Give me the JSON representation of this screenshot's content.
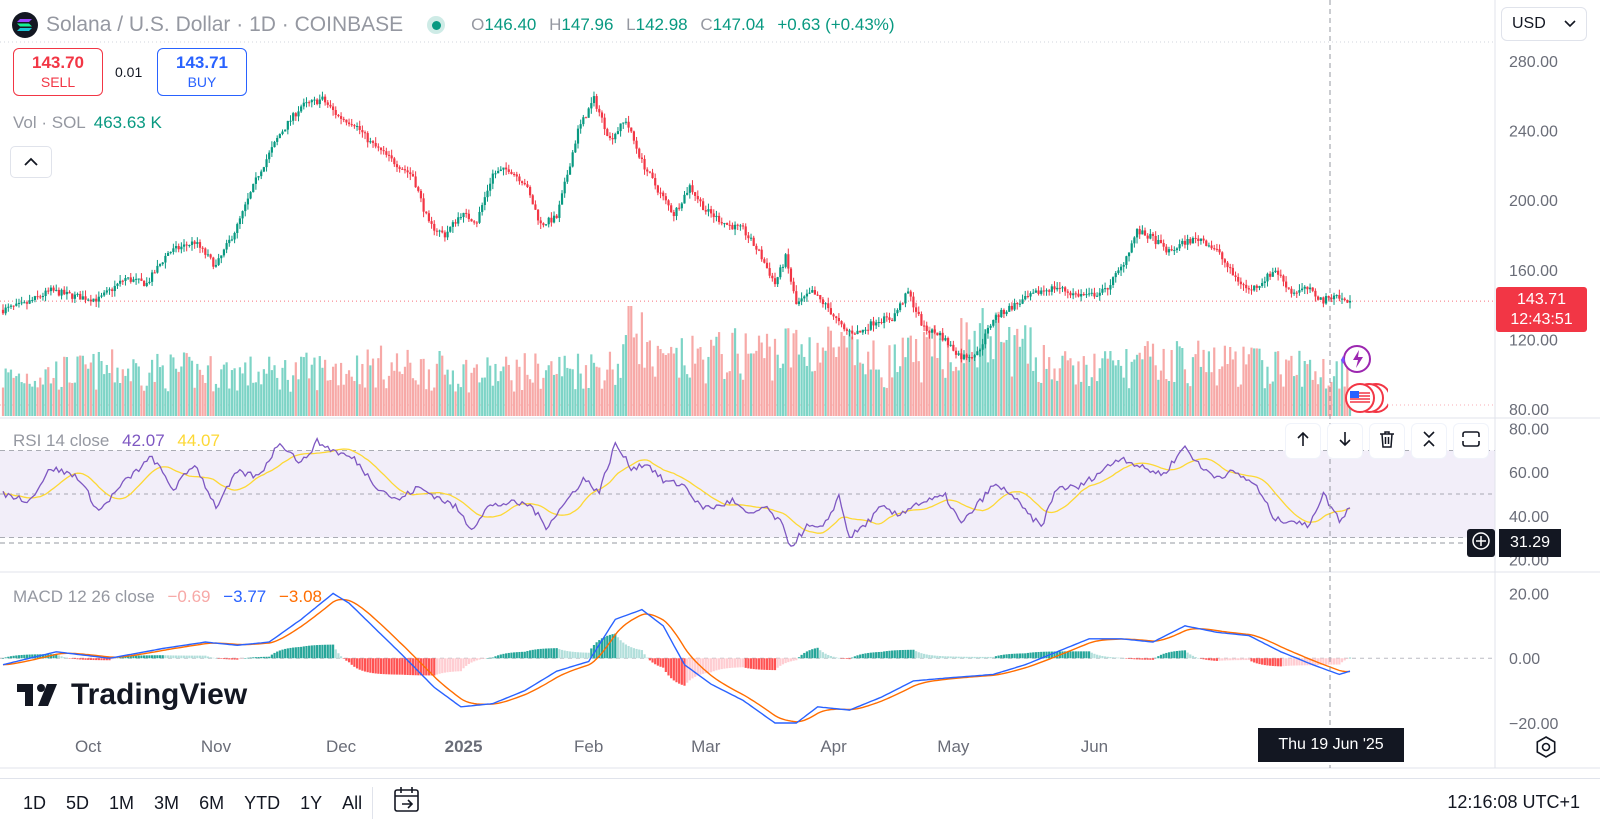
{
  "header": {
    "symbol_title": "Solana / U.S. Dollar",
    "interval": "1D",
    "exchange": "COINBASE",
    "ohlc": {
      "o_label": "O",
      "o": "146.40",
      "h_label": "H",
      "h": "147.96",
      "l_label": "L",
      "l": "142.98",
      "c_label": "C",
      "c": "147.04",
      "change": "+0.63 (+0.43%)"
    },
    "currency": "USD"
  },
  "trade": {
    "sell_price": "143.70",
    "sell_label": "SELL",
    "spread": "0.01",
    "buy_price": "143.71",
    "buy_label": "BUY"
  },
  "volume_label": {
    "name": "Vol · SOL",
    "value": "463.63 K"
  },
  "rsi_label": {
    "name": "RSI 14 close",
    "value": "42.07",
    "ma": "44.07"
  },
  "macd_label": {
    "name": "MACD 12 26 close",
    "hist": "−0.69",
    "macd": "−3.77",
    "signal": "−3.08"
  },
  "price_tag": {
    "price": "143.71",
    "countdown": "12:43:51"
  },
  "rsi_tag": "31.29",
  "crosshair_date": "Thu 19 Jun '25",
  "brand": "TradingView",
  "bottom_bar": {
    "ranges": [
      "1D",
      "5D",
      "1M",
      "3M",
      "6M",
      "YTD",
      "1Y",
      "All"
    ],
    "clock": "12:16:08 UTC+1"
  },
  "colors": {
    "up": "#089981",
    "down": "#f23645",
    "rsi": "#7e57c2",
    "rsi_ma": "#fdd835",
    "macd": "#2962ff",
    "signal": "#ff6d00"
  },
  "chart_data": {
    "type": "candlestick",
    "x_ticks": [
      "Oct",
      "Nov",
      "Dec",
      "2025",
      "Feb",
      "Mar",
      "Apr",
      "May",
      "Jun"
    ],
    "price_axis": [
      "280.00",
      "240.00",
      "200.00",
      "160.00",
      "120.00",
      "80.00"
    ],
    "rsi_axis": [
      "80.00",
      "60.00",
      "40.00",
      "20.00"
    ],
    "macd_axis": [
      "20.00",
      "0.00",
      "−20.00"
    ],
    "ylim": [
      76,
      292
    ],
    "rsi_ylim": [
      16,
      84
    ],
    "macd_ylim": [
      -24,
      26
    ],
    "close_anchors": [
      [
        0,
        137
      ],
      [
        8,
        140
      ],
      [
        18,
        148
      ],
      [
        26,
        145
      ],
      [
        36,
        143
      ],
      [
        46,
        155
      ],
      [
        54,
        152
      ],
      [
        62,
        170
      ],
      [
        72,
        176
      ],
      [
        80,
        162
      ],
      [
        88,
        185
      ],
      [
        96,
        215
      ],
      [
        104,
        238
      ],
      [
        112,
        254
      ],
      [
        120,
        258
      ],
      [
        126,
        248
      ],
      [
        132,
        244
      ],
      [
        138,
        233
      ],
      [
        146,
        223
      ],
      [
        154,
        214
      ],
      [
        160,
        186
      ],
      [
        166,
        180
      ],
      [
        172,
        192
      ],
      [
        178,
        188
      ],
      [
        184,
        215
      ],
      [
        190,
        218
      ],
      [
        196,
        210
      ],
      [
        202,
        186
      ],
      [
        208,
        190
      ],
      [
        216,
        240
      ],
      [
        222,
        258
      ],
      [
        228,
        235
      ],
      [
        234,
        246
      ],
      [
        240,
        222
      ],
      [
        246,
        206
      ],
      [
        252,
        192
      ],
      [
        258,
        208
      ],
      [
        264,
        194
      ],
      [
        272,
        186
      ],
      [
        278,
        183
      ],
      [
        284,
        170
      ],
      [
        290,
        152
      ],
      [
        294,
        167
      ],
      [
        298,
        140
      ],
      [
        304,
        147
      ],
      [
        310,
        138
      ],
      [
        316,
        125
      ],
      [
        322,
        124
      ],
      [
        328,
        131
      ],
      [
        334,
        132
      ],
      [
        340,
        147
      ],
      [
        346,
        126
      ],
      [
        352,
        123
      ],
      [
        356,
        116
      ],
      [
        360,
        110
      ],
      [
        366,
        112
      ],
      [
        372,
        132
      ],
      [
        378,
        138
      ],
      [
        384,
        143
      ],
      [
        390,
        148
      ],
      [
        396,
        150
      ],
      [
        402,
        146
      ],
      [
        408,
        145
      ],
      [
        414,
        148
      ],
      [
        420,
        161
      ],
      [
        426,
        182
      ],
      [
        432,
        178
      ],
      [
        438,
        170
      ],
      [
        444,
        176
      ],
      [
        450,
        178
      ],
      [
        456,
        171
      ],
      [
        462,
        157
      ],
      [
        468,
        148
      ],
      [
        472,
        152
      ],
      [
        478,
        160
      ],
      [
        484,
        147
      ],
      [
        490,
        149
      ],
      [
        496,
        142
      ],
      [
        500,
        146
      ],
      [
        504,
        142
      ]
    ],
    "volume_anchors": [
      [
        0,
        0.35
      ],
      [
        40,
        0.42
      ],
      [
        100,
        0.38
      ],
      [
        140,
        0.45
      ],
      [
        180,
        0.38
      ],
      [
        232,
        0.45
      ],
      [
        236,
        1.0
      ],
      [
        244,
        0.45
      ],
      [
        270,
        0.55
      ],
      [
        310,
        0.62
      ],
      [
        330,
        0.45
      ],
      [
        372,
        0.72
      ],
      [
        400,
        0.4
      ],
      [
        440,
        0.5
      ],
      [
        500,
        0.4
      ]
    ],
    "rsi_anchors": [
      [
        0,
        50
      ],
      [
        10,
        47
      ],
      [
        18,
        62
      ],
      [
        28,
        58
      ],
      [
        36,
        42
      ],
      [
        46,
        56
      ],
      [
        56,
        67
      ],
      [
        64,
        52
      ],
      [
        72,
        64
      ],
      [
        80,
        44
      ],
      [
        88,
        60
      ],
      [
        96,
        58
      ],
      [
        104,
        74
      ],
      [
        112,
        64
      ],
      [
        118,
        74
      ],
      [
        124,
        70
      ],
      [
        132,
        66
      ],
      [
        140,
        54
      ],
      [
        148,
        47
      ],
      [
        156,
        53
      ],
      [
        164,
        48
      ],
      [
        170,
        44
      ],
      [
        176,
        34
      ],
      [
        182,
        44
      ],
      [
        190,
        46
      ],
      [
        198,
        45
      ],
      [
        204,
        35
      ],
      [
        210,
        44
      ],
      [
        218,
        57
      ],
      [
        224,
        51
      ],
      [
        230,
        73
      ],
      [
        236,
        62
      ],
      [
        242,
        64
      ],
      [
        248,
        56
      ],
      [
        256,
        54
      ],
      [
        262,
        44
      ],
      [
        268,
        44
      ],
      [
        274,
        47
      ],
      [
        280,
        40
      ],
      [
        286,
        44
      ],
      [
        292,
        37
      ],
      [
        296,
        26
      ],
      [
        302,
        35
      ],
      [
        308,
        34
      ],
      [
        314,
        49
      ],
      [
        318,
        30
      ],
      [
        324,
        36
      ],
      [
        330,
        44
      ],
      [
        336,
        40
      ],
      [
        342,
        45
      ],
      [
        348,
        47
      ],
      [
        354,
        49
      ],
      [
        360,
        36
      ],
      [
        366,
        45
      ],
      [
        372,
        54
      ],
      [
        378,
        51
      ],
      [
        384,
        42
      ],
      [
        390,
        35
      ],
      [
        396,
        53
      ],
      [
        404,
        53
      ],
      [
        412,
        60
      ],
      [
        420,
        67
      ],
      [
        428,
        62
      ],
      [
        436,
        59
      ],
      [
        444,
        72
      ],
      [
        450,
        62
      ],
      [
        456,
        58
      ],
      [
        462,
        60
      ],
      [
        470,
        55
      ],
      [
        478,
        38
      ],
      [
        484,
        38
      ],
      [
        490,
        35
      ],
      [
        496,
        50
      ],
      [
        502,
        38
      ],
      [
        506,
        44
      ]
    ],
    "macd_anchors": [
      [
        0,
        -2
      ],
      [
        20,
        2
      ],
      [
        40,
        0
      ],
      [
        60,
        3
      ],
      [
        76,
        5
      ],
      [
        88,
        4
      ],
      [
        100,
        5
      ],
      [
        112,
        12
      ],
      [
        118,
        16
      ],
      [
        124,
        20
      ],
      [
        130,
        17
      ],
      [
        140,
        9
      ],
      [
        150,
        1
      ],
      [
        162,
        -9
      ],
      [
        172,
        -15
      ],
      [
        184,
        -14
      ],
      [
        196,
        -10
      ],
      [
        208,
        -4
      ],
      [
        220,
        -1
      ],
      [
        230,
        12
      ],
      [
        240,
        15
      ],
      [
        248,
        10
      ],
      [
        256,
        -2
      ],
      [
        266,
        -8
      ],
      [
        278,
        -13
      ],
      [
        290,
        -20
      ],
      [
        298,
        -20
      ],
      [
        306,
        -15
      ],
      [
        318,
        -16
      ],
      [
        330,
        -12
      ],
      [
        342,
        -7
      ],
      [
        356,
        -6
      ],
      [
        372,
        -5
      ],
      [
        384,
        -2
      ],
      [
        396,
        2
      ],
      [
        408,
        6
      ],
      [
        420,
        6
      ],
      [
        432,
        5
      ],
      [
        444,
        10
      ],
      [
        456,
        8
      ],
      [
        468,
        7
      ],
      [
        480,
        2
      ],
      [
        492,
        -2
      ],
      [
        502,
        -5
      ],
      [
        506,
        -4
      ]
    ]
  }
}
